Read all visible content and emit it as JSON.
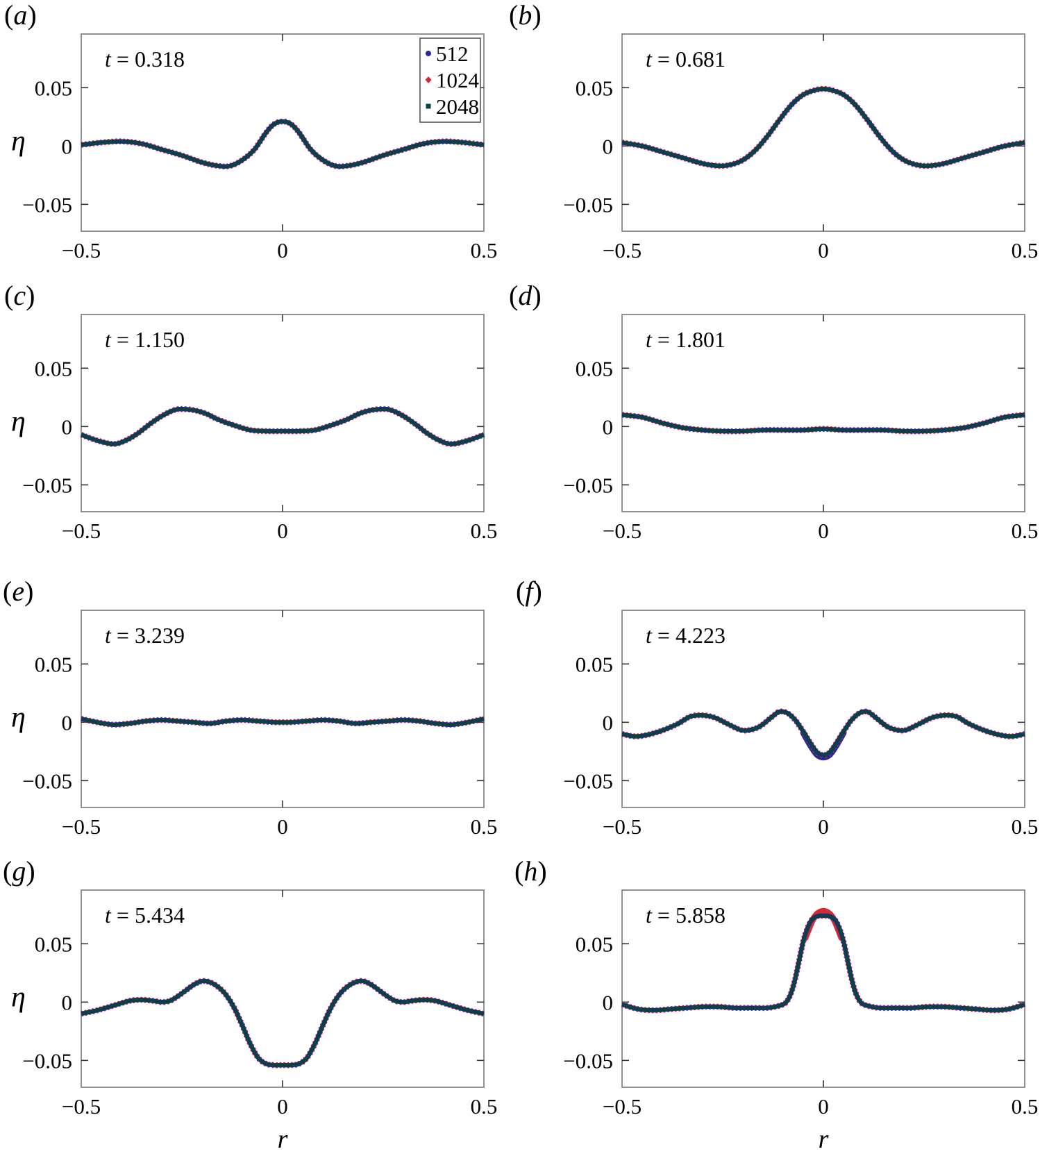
{
  "figure": {
    "paren_open": "(",
    "paren_close": ")",
    "ylabel": "η",
    "xlabel": "r",
    "x_tick_values": [
      -0.5,
      0,
      0.5
    ],
    "x_ticks": [
      "−0.5",
      "0",
      "0.5"
    ],
    "y_tick_values": [
      0.05,
      0,
      -0.05
    ],
    "y_ticks": [
      "0.05",
      "0",
      "−0.05"
    ],
    "colors": {
      "512": "#28289b",
      "1024": "#d42a35",
      "2048": "#0d4043",
      "frame": "#777777",
      "tick": "#333333"
    },
    "legend": {
      "entries": [
        {
          "label": "512",
          "marker": "circle",
          "color": "#28289b"
        },
        {
          "label": "1024",
          "marker": "diamond",
          "color": "#d42a35"
        },
        {
          "label": "2048",
          "marker": "square",
          "color": "#0d4043"
        }
      ]
    }
  },
  "chart_data": [
    {
      "panel_letter": "a",
      "type": "line",
      "t_var": "t",
      "t_value": "0.318",
      "row": 0,
      "col": 0,
      "has_legend": true,
      "symmetric": true,
      "xlim": [
        -0.5,
        0.5
      ],
      "ylim": [
        -0.073,
        0.096
      ],
      "series_names": [
        "512",
        "1024",
        "2048"
      ],
      "r": [
        -0.5,
        -0.45,
        -0.4,
        -0.35,
        -0.3,
        -0.25,
        -0.2,
        -0.16,
        -0.13,
        -0.1,
        -0.07,
        -0.04,
        -0.02,
        0
      ],
      "eta": [
        0.001,
        0.003,
        0.004,
        0.002,
        -0.003,
        -0.008,
        -0.014,
        -0.017,
        -0.017,
        -0.012,
        -0.003,
        0.012,
        0.019,
        0.021
      ]
    },
    {
      "panel_letter": "b",
      "type": "line",
      "t_var": "t",
      "t_value": "0.681",
      "row": 0,
      "col": 1,
      "has_legend": false,
      "symmetric": true,
      "xlim": [
        -0.5,
        0.5
      ],
      "ylim": [
        -0.073,
        0.096
      ],
      "series_names": [
        "512",
        "1024",
        "2048"
      ],
      "r": [
        -0.5,
        -0.45,
        -0.4,
        -0.35,
        -0.3,
        -0.26,
        -0.23,
        -0.2,
        -0.17,
        -0.14,
        -0.11,
        -0.08,
        -0.05,
        -0.02,
        0
      ],
      "eta": [
        0.003,
        0.0,
        -0.005,
        -0.01,
        -0.015,
        -0.017,
        -0.016,
        -0.012,
        -0.004,
        0.008,
        0.022,
        0.035,
        0.044,
        0.048,
        0.049
      ]
    },
    {
      "panel_letter": "c",
      "type": "line",
      "t_var": "t",
      "t_value": "1.150",
      "row": 1,
      "col": 0,
      "has_legend": false,
      "symmetric": true,
      "xlim": [
        -0.5,
        0.5
      ],
      "ylim": [
        -0.073,
        0.096
      ],
      "series_names": [
        "512",
        "1024",
        "2048"
      ],
      "r": [
        -0.5,
        -0.46,
        -0.42,
        -0.39,
        -0.36,
        -0.33,
        -0.3,
        -0.27,
        -0.25,
        -0.22,
        -0.19,
        -0.16,
        -0.12,
        -0.08,
        -0.04,
        0
      ],
      "eta": [
        -0.007,
        -0.012,
        -0.015,
        -0.012,
        -0.006,
        0.002,
        0.009,
        0.014,
        0.015,
        0.014,
        0.011,
        0.006,
        0.001,
        -0.003,
        -0.004,
        -0.004
      ]
    },
    {
      "panel_letter": "d",
      "type": "line",
      "t_var": "t",
      "t_value": "1.801",
      "row": 1,
      "col": 1,
      "has_legend": false,
      "symmetric": true,
      "xlim": [
        -0.5,
        0.5
      ],
      "ylim": [
        -0.073,
        0.096
      ],
      "series_names": [
        "512",
        "1024",
        "2048"
      ],
      "r": [
        -0.5,
        -0.45,
        -0.4,
        -0.35,
        -0.3,
        -0.25,
        -0.2,
        -0.15,
        -0.1,
        -0.05,
        0
      ],
      "eta": [
        0.01,
        0.008,
        0.003,
        -0.001,
        -0.003,
        -0.004,
        -0.004,
        -0.003,
        -0.003,
        -0.003,
        -0.002
      ]
    },
    {
      "panel_letter": "e",
      "type": "line",
      "t_var": "t",
      "t_value": "3.239",
      "row": 2,
      "col": 0,
      "has_legend": false,
      "symmetric": true,
      "xlim": [
        -0.5,
        0.5
      ],
      "ylim": [
        -0.073,
        0.096
      ],
      "series_names": [
        "512",
        "1024",
        "2048"
      ],
      "r": [
        -0.5,
        -0.46,
        -0.42,
        -0.38,
        -0.34,
        -0.3,
        -0.26,
        -0.22,
        -0.18,
        -0.14,
        -0.1,
        -0.06,
        -0.02,
        0
      ],
      "eta": [
        0.003,
        0.0,
        -0.002,
        -0.001,
        0.001,
        0.002,
        0.001,
        0.0,
        -0.001,
        0.001,
        0.002,
        0.001,
        0.0,
        0.0
      ]
    },
    {
      "panel_letter": "f",
      "type": "line",
      "t_var": "t",
      "t_value": "4.223",
      "row": 2,
      "col": 1,
      "has_legend": false,
      "symmetric": true,
      "xlim": [
        -0.5,
        0.5
      ],
      "ylim": [
        -0.073,
        0.096
      ],
      "series_names": [
        "512",
        "1024",
        "2048"
      ],
      "r": [
        -0.5,
        -0.47,
        -0.44,
        -0.4,
        -0.36,
        -0.33,
        -0.3,
        -0.27,
        -0.24,
        -0.21,
        -0.19,
        -0.16,
        -0.13,
        -0.11,
        -0.09,
        -0.07,
        -0.05,
        -0.03,
        -0.015,
        0
      ],
      "eta": [
        -0.01,
        -0.012,
        -0.011,
        -0.007,
        -0.001,
        0.005,
        0.006,
        0.004,
        -0.001,
        -0.006,
        -0.007,
        -0.004,
        0.004,
        0.009,
        0.008,
        0.002,
        -0.008,
        -0.019,
        -0.026,
        -0.028
      ],
      "deviation": {
        "series": "512",
        "r": [
          -0.05,
          -0.03,
          -0.015,
          0
        ],
        "eta": [
          -0.009,
          -0.021,
          -0.028,
          -0.03
        ]
      }
    },
    {
      "panel_letter": "g",
      "type": "line",
      "t_var": "t",
      "t_value": "5.434",
      "row": 3,
      "col": 0,
      "has_legend": false,
      "symmetric": true,
      "xlim": [
        -0.5,
        0.5
      ],
      "ylim": [
        -0.073,
        0.096
      ],
      "series_names": [
        "512",
        "1024",
        "2048"
      ],
      "r": [
        -0.5,
        -0.46,
        -0.42,
        -0.38,
        -0.35,
        -0.32,
        -0.3,
        -0.28,
        -0.26,
        -0.24,
        -0.22,
        -0.2,
        -0.18,
        -0.16,
        -0.14,
        -0.12,
        -0.1,
        -0.08,
        -0.06,
        -0.04,
        -0.02,
        0
      ],
      "eta": [
        -0.01,
        -0.007,
        -0.003,
        0.001,
        0.002,
        0.001,
        0.0,
        0.001,
        0.005,
        0.01,
        0.015,
        0.018,
        0.017,
        0.013,
        0.006,
        -0.005,
        -0.02,
        -0.036,
        -0.048,
        -0.053,
        -0.054,
        -0.054
      ]
    },
    {
      "panel_letter": "h",
      "type": "line",
      "t_var": "t",
      "t_value": "5.858",
      "row": 3,
      "col": 1,
      "has_legend": false,
      "symmetric": true,
      "xlim": [
        -0.5,
        0.5
      ],
      "ylim": [
        -0.073,
        0.096
      ],
      "series_names": [
        "512",
        "1024",
        "2048"
      ],
      "r": [
        -0.5,
        -0.46,
        -0.42,
        -0.38,
        -0.34,
        -0.3,
        -0.26,
        -0.22,
        -0.18,
        -0.14,
        -0.12,
        -0.1,
        -0.09,
        -0.08,
        -0.07,
        -0.06,
        -0.05,
        -0.04,
        -0.03,
        -0.02,
        -0.01,
        0
      ],
      "eta": [
        -0.002,
        -0.006,
        -0.007,
        -0.006,
        -0.005,
        -0.004,
        -0.004,
        -0.005,
        -0.005,
        -0.005,
        -0.004,
        -0.002,
        0.001,
        0.008,
        0.02,
        0.036,
        0.052,
        0.063,
        0.07,
        0.073,
        0.074,
        0.074
      ],
      "deviation": {
        "series": "1024",
        "r": [
          -0.045,
          -0.03,
          -0.02,
          -0.01,
          0
        ],
        "eta": [
          0.055,
          0.068,
          0.074,
          0.077,
          0.078
        ]
      }
    }
  ]
}
